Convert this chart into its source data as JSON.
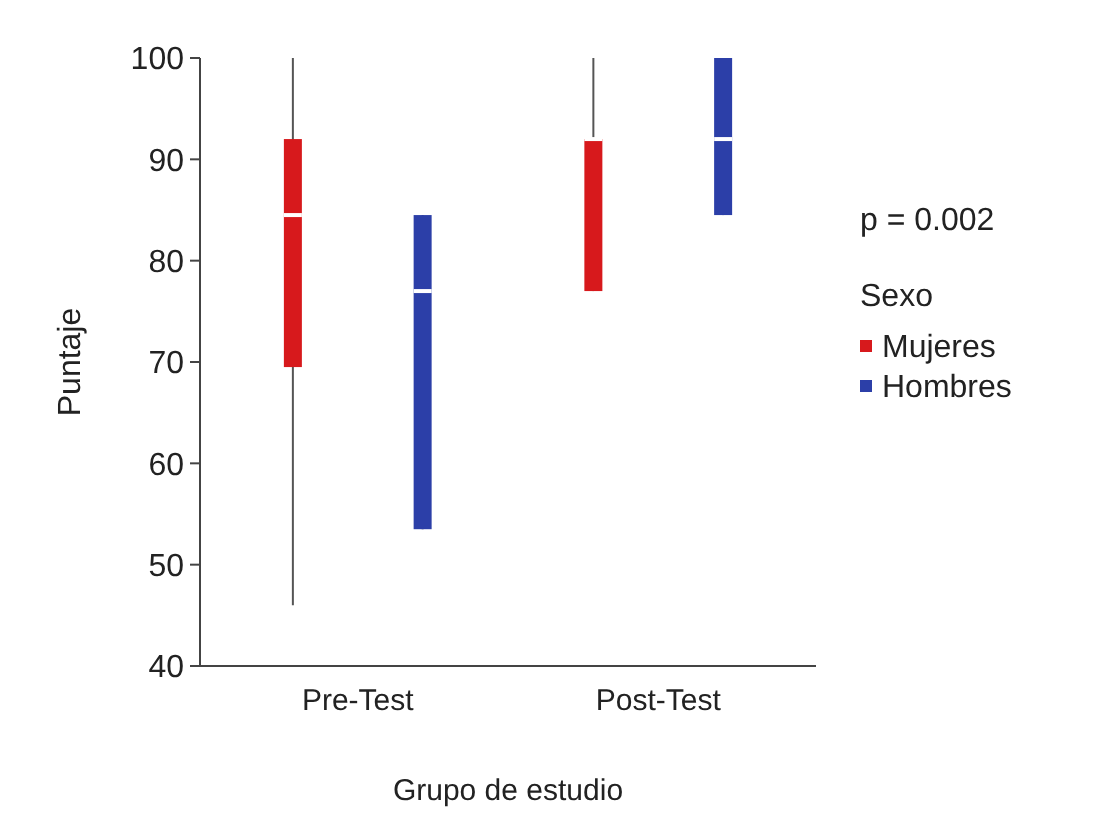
{
  "chart_data": {
    "type": "box",
    "xlabel": "Grupo de estudio",
    "ylabel": "Puntaje",
    "legend_title": "Sexo",
    "legend": "right",
    "grid": false,
    "categories": [
      "Pre-Test",
      "Post-Test"
    ],
    "ylim": [
      40,
      100
    ],
    "yticks": [
      40,
      50,
      60,
      70,
      80,
      90,
      100
    ],
    "annotations": [
      "p = 0.002"
    ],
    "series": [
      {
        "name": "Mujeres",
        "color": "#d7191c",
        "boxes": [
          {
            "low": 46,
            "q1": 69.5,
            "median": 84.5,
            "q3": 92,
            "high": 100
          },
          {
            "low": 77,
            "q1": 77,
            "median": 92,
            "q3": 92,
            "high": 100
          }
        ]
      },
      {
        "name": "Hombres",
        "color": "#2c3fa8",
        "boxes": [
          {
            "low": 53.5,
            "q1": 53.5,
            "median": 77,
            "q3": 84.5,
            "high": 84.5
          },
          {
            "low": 84.5,
            "q1": 84.5,
            "median": 92,
            "q3": 100,
            "high": 100
          }
        ]
      }
    ]
  }
}
